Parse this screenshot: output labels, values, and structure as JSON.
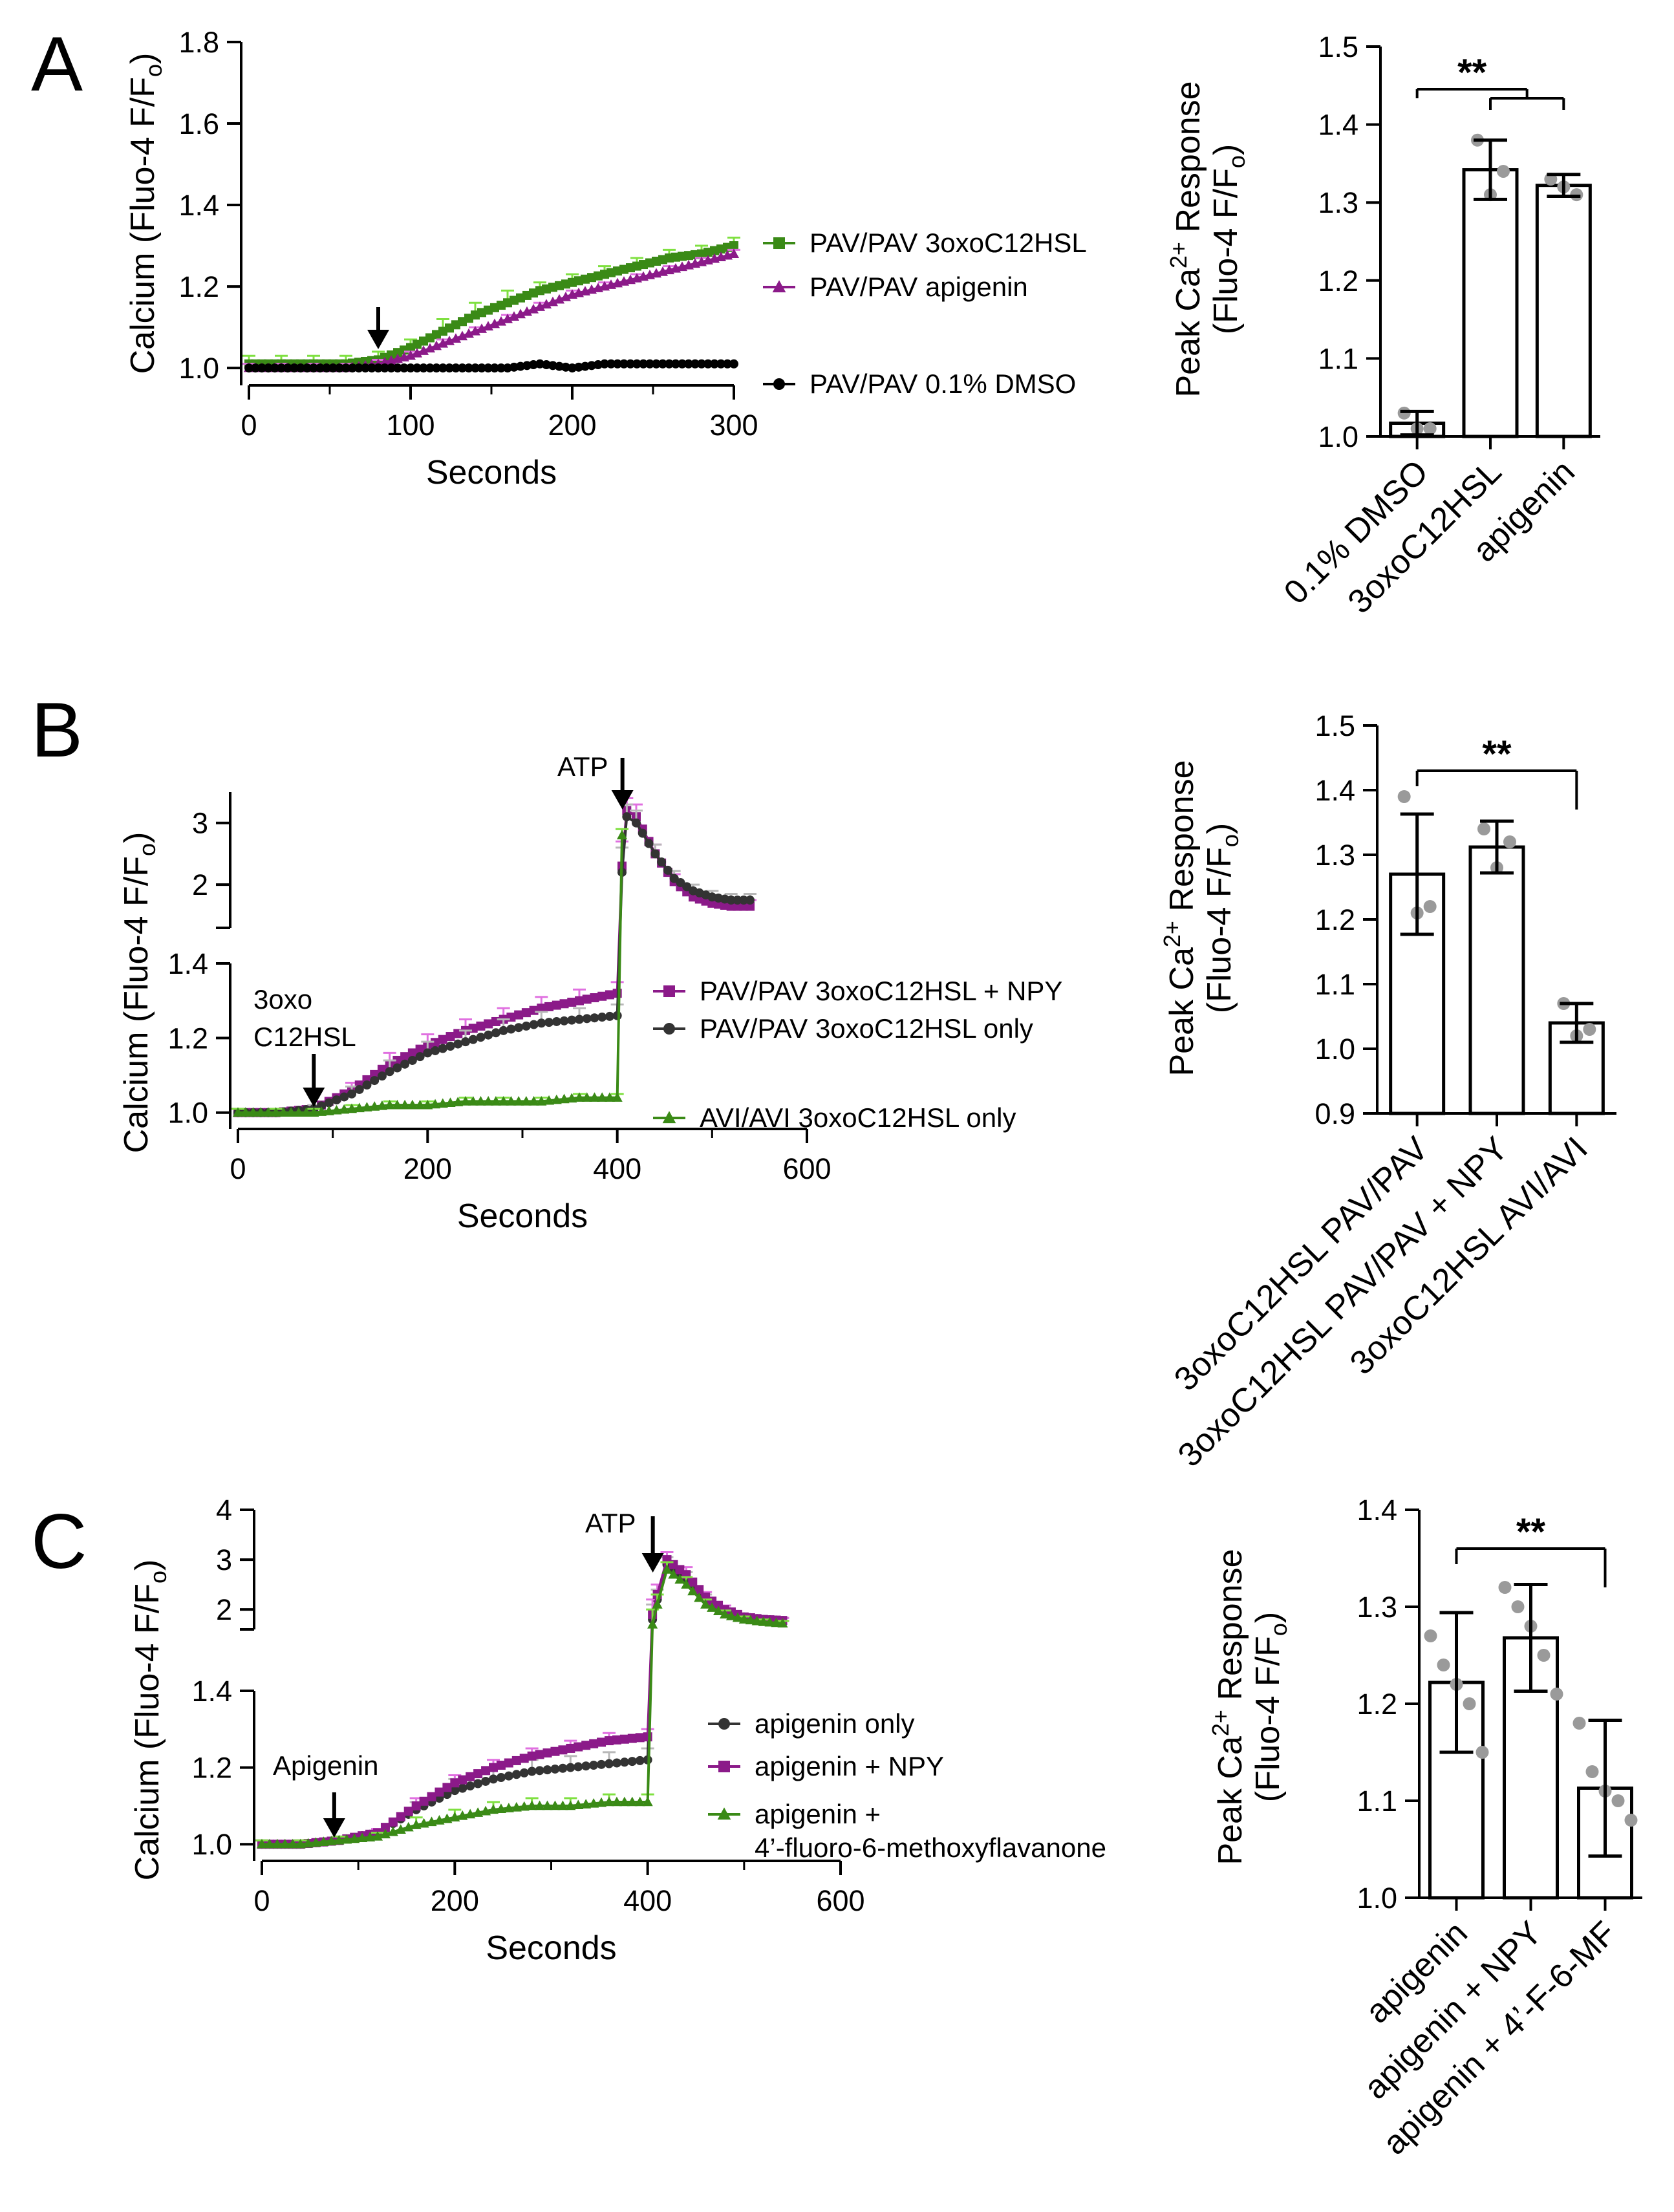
{
  "colors": {
    "black": "#000000",
    "purple": "#8B1A89",
    "green": "#3A8A16",
    "green_light": "#7FE040",
    "purple_light": "#E070E0",
    "grey": "#B8B8B8",
    "dark": "#333333",
    "dot": "#9A9A9A"
  },
  "chart_data": [
    {
      "id": "A_trace",
      "panel_label": "A",
      "type": "line",
      "xlabel": "Seconds",
      "ylabel": "Calcium (Fluo-4 F/F",
      "ylabel_sub": "o",
      "ylabel_close": ")",
      "xlim": [
        0,
        300
      ],
      "ylim": [
        0.97,
        1.8
      ],
      "xticks": [
        0,
        100,
        200,
        300
      ],
      "yticks": [
        1.0,
        1.2,
        1.4,
        1.6,
        1.8
      ],
      "ytick_labels": [
        "1.0",
        "1.2",
        "1.4",
        "1.6",
        "1.8"
      ],
      "arrow_x": 80,
      "series": [
        {
          "name": "PAV/PAV 3oxoC12HSL",
          "color": "green",
          "err_color": "green_light",
          "marker": "square",
          "x": [
            0,
            20,
            40,
            60,
            80,
            100,
            120,
            140,
            160,
            180,
            200,
            220,
            240,
            260,
            280,
            300
          ],
          "y": [
            1.01,
            1.01,
            1.01,
            1.01,
            1.02,
            1.05,
            1.09,
            1.13,
            1.16,
            1.19,
            1.21,
            1.23,
            1.25,
            1.27,
            1.28,
            1.3
          ],
          "err": [
            0.02,
            0.02,
            0.02,
            0.02,
            0.02,
            0.02,
            0.03,
            0.03,
            0.03,
            0.02,
            0.02,
            0.02,
            0.02,
            0.02,
            0.02,
            0.02
          ]
        },
        {
          "name": "PAV/PAV apigenin",
          "color": "purple",
          "err_color": "purple_light",
          "marker": "triangle",
          "x": [
            0,
            20,
            40,
            60,
            80,
            100,
            120,
            140,
            160,
            180,
            200,
            220,
            240,
            260,
            280,
            300
          ],
          "y": [
            1.0,
            1.0,
            1.0,
            1.0,
            1.01,
            1.03,
            1.06,
            1.09,
            1.12,
            1.15,
            1.18,
            1.2,
            1.22,
            1.24,
            1.26,
            1.28
          ],
          "err": [
            0.01,
            0.01,
            0.01,
            0.01,
            0.01,
            0.01,
            0.01,
            0.01,
            0.01,
            0.01,
            0.01,
            0.01,
            0.01,
            0.01,
            0.01,
            0.01
          ]
        },
        {
          "name": "PAV/PAV 0.1% DMSO",
          "color": "black",
          "err_color": "black",
          "marker": "circle",
          "x": [
            0,
            20,
            40,
            60,
            80,
            100,
            120,
            140,
            160,
            180,
            200,
            220,
            240,
            260,
            280,
            300
          ],
          "y": [
            1.0,
            1.0,
            1.0,
            1.0,
            1.0,
            1.0,
            1.0,
            1.0,
            1.0,
            1.01,
            1.0,
            1.01,
            1.01,
            1.01,
            1.01,
            1.01
          ],
          "err": [
            0,
            0,
            0,
            0,
            0,
            0,
            0,
            0,
            0,
            0,
            0,
            0,
            0,
            0,
            0,
            0
          ]
        }
      ]
    },
    {
      "id": "A_bar",
      "type": "bar",
      "ylabel": "Peak Ca",
      "ylabel_sup": "2+",
      "ylabel_rest": " Response",
      "ylabel2": "(Fluo-4 F/F",
      "ylabel2_sub": "o",
      "ylabel2_close": ")",
      "ylim": [
        1.0,
        1.5
      ],
      "yticks": [
        1.0,
        1.1,
        1.2,
        1.3,
        1.4,
        1.5
      ],
      "ytick_labels": [
        "1.0",
        "1.1",
        "1.2",
        "1.3",
        "1.4",
        "1.5"
      ],
      "categories": [
        "0.1% DMSO",
        "3oxoC12HSL",
        "apigenin"
      ],
      "values": [
        1.017,
        1.342,
        1.322
      ],
      "errors": [
        0.015,
        0.038,
        0.014
      ],
      "points": [
        [
          1.03,
          1.01,
          1.01
        ],
        [
          1.38,
          1.31,
          1.34
        ],
        [
          1.33,
          1.32,
          1.31
        ]
      ],
      "significance": "**"
    },
    {
      "id": "B_trace",
      "panel_label": "B",
      "type": "line",
      "xlabel": "Seconds",
      "ylabel": "Calcium (Fluo-4 F/F",
      "ylabel_sub": "o",
      "ylabel_close": ")",
      "xlim": [
        0,
        600
      ],
      "ylim_lower": [
        0.97,
        1.4
      ],
      "ylim_upper": [
        1.3,
        3.5
      ],
      "xticks": [
        0,
        200,
        400,
        600
      ],
      "yticks_lower": [
        1.0,
        1.2,
        1.4
      ],
      "ytick_labels_lower": [
        "1.0",
        "1.2",
        "1.4"
      ],
      "yticks_upper": [
        2,
        3
      ],
      "ytick_labels_upper": [
        "2",
        "3"
      ],
      "annotation_agonist": [
        "3oxo",
        "C12HSL"
      ],
      "arrow_agonist_x": 80,
      "annotation_atp": "ATP",
      "arrow_atp_x": 400,
      "series": [
        {
          "name": "PAV/PAV 3oxoC12HSL + NPY",
          "color": "purple",
          "err_color": "purple_light",
          "marker": "square",
          "x": [
            0,
            40,
            80,
            120,
            160,
            200,
            240,
            280,
            320,
            360,
            400,
            405,
            410,
            420,
            440,
            460,
            480,
            500,
            520,
            540
          ],
          "y": [
            1.0,
            1.0,
            1.01,
            1.06,
            1.13,
            1.18,
            1.22,
            1.25,
            1.28,
            1.3,
            1.32,
            2.3,
            3.2,
            3.1,
            2.5,
            2.05,
            1.8,
            1.7,
            1.65,
            1.65
          ],
          "err": [
            0.01,
            0.01,
            0.01,
            0.02,
            0.03,
            0.03,
            0.03,
            0.03,
            0.03,
            0.03,
            0.03,
            0.4,
            0.2,
            0.2,
            0.15,
            0.12,
            0.1,
            0.1,
            0.1,
            0.1
          ]
        },
        {
          "name": "PAV/PAV 3oxoC12HSL only",
          "color": "dark",
          "err_color": "grey",
          "marker": "circle",
          "x": [
            0,
            40,
            80,
            120,
            160,
            200,
            240,
            280,
            320,
            360,
            400,
            405,
            410,
            420,
            440,
            460,
            480,
            500,
            520,
            540
          ],
          "y": [
            1.0,
            1.0,
            1.01,
            1.05,
            1.11,
            1.16,
            1.19,
            1.22,
            1.24,
            1.25,
            1.26,
            2.2,
            3.1,
            3.0,
            2.5,
            2.1,
            1.9,
            1.8,
            1.75,
            1.75
          ],
          "err": [
            0.01,
            0.01,
            0.01,
            0.02,
            0.03,
            0.03,
            0.03,
            0.03,
            0.03,
            0.03,
            0.03,
            0.4,
            0.2,
            0.2,
            0.15,
            0.12,
            0.1,
            0.1,
            0.1,
            0.1
          ]
        },
        {
          "name": "AVI/AVI 3oxoC12HSL only",
          "color": "green",
          "err_color": "green_light",
          "marker": "triangle",
          "x": [
            0,
            40,
            80,
            120,
            160,
            200,
            240,
            280,
            320,
            360,
            400,
            405
          ],
          "y": [
            1.0,
            1.0,
            1.0,
            1.01,
            1.02,
            1.02,
            1.03,
            1.03,
            1.03,
            1.04,
            1.04,
            2.8
          ],
          "err": [
            0.01,
            0.01,
            0.01,
            0.01,
            0.01,
            0.01,
            0.01,
            0.01,
            0.01,
            0.01,
            0.01,
            0.1
          ]
        }
      ]
    },
    {
      "id": "B_bar",
      "type": "bar",
      "ylabel": "Peak Ca",
      "ylabel_sup": "2+",
      "ylabel_rest": " Response",
      "ylabel2": "(Fluo-4 F/F",
      "ylabel2_sub": "o",
      "ylabel2_close": ")",
      "ylim": [
        0.9,
        1.5
      ],
      "yticks": [
        0.9,
        1.0,
        1.1,
        1.2,
        1.3,
        1.4,
        1.5
      ],
      "ytick_labels": [
        "0.9",
        "1.0",
        "1.1",
        "1.2",
        "1.3",
        "1.4",
        "1.5"
      ],
      "categories": [
        "3oxoC12HSL PAV/PAV",
        "3oxoC12HSL PAV/PAV + NPY",
        "3oxoC12HSL AVI/AVI"
      ],
      "values": [
        1.27,
        1.312,
        1.04
      ],
      "errors": [
        0.093,
        0.04,
        0.03
      ],
      "points": [
        [
          1.39,
          1.21,
          1.22
        ],
        [
          1.34,
          1.28,
          1.32
        ],
        [
          1.07,
          1.02,
          1.03
        ]
      ],
      "significance": "**"
    },
    {
      "id": "C_trace",
      "panel_label": "C",
      "type": "line",
      "xlabel": "Seconds",
      "ylabel": "Calcium (Fluo-4 F/F",
      "ylabel_sub": "o",
      "ylabel_close": ")",
      "xlim": [
        0,
        600
      ],
      "ylim_lower": [
        0.97,
        1.4
      ],
      "ylim_upper": [
        1.6,
        4.0
      ],
      "xticks": [
        0,
        200,
        400,
        600
      ],
      "yticks_lower": [
        1.0,
        1.2,
        1.4
      ],
      "ytick_labels_lower": [
        "1.0",
        "1.2",
        "1.4"
      ],
      "yticks_upper": [
        2,
        3,
        4
      ],
      "ytick_labels_upper": [
        "2",
        "3",
        "4"
      ],
      "annotation_agonist": [
        "Apigenin"
      ],
      "arrow_agonist_x": 75,
      "annotation_atp": "ATP",
      "arrow_atp_x": 400,
      "series": [
        {
          "name": "apigenin only",
          "color": "dark",
          "err_color": "grey",
          "marker": "circle",
          "x": [
            0,
            40,
            80,
            120,
            160,
            200,
            240,
            280,
            320,
            360,
            400,
            405,
            410,
            420,
            440,
            460,
            480,
            500,
            520,
            540
          ],
          "y": [
            1.0,
            1.0,
            1.01,
            1.03,
            1.09,
            1.14,
            1.17,
            1.19,
            1.2,
            1.21,
            1.22,
            1.8,
            2.2,
            2.9,
            2.6,
            2.2,
            1.95,
            1.85,
            1.8,
            1.78
          ],
          "err": [
            0.01,
            0.01,
            0.01,
            0.01,
            0.02,
            0.03,
            0.03,
            0.03,
            0.03,
            0.03,
            0.03,
            0.3,
            0.2,
            0.15,
            0.15,
            0.1,
            0.08,
            0.06,
            0.05,
            0.05
          ]
        },
        {
          "name": "apigenin + NPY",
          "color": "purple",
          "err_color": "purple_light",
          "marker": "square",
          "x": [
            0,
            40,
            80,
            120,
            160,
            200,
            240,
            280,
            320,
            360,
            400,
            405,
            410,
            420,
            440,
            460,
            480,
            500,
            520,
            540
          ],
          "y": [
            1.0,
            1.0,
            1.01,
            1.03,
            1.1,
            1.16,
            1.2,
            1.23,
            1.25,
            1.27,
            1.28,
            1.9,
            2.3,
            3.0,
            2.7,
            2.25,
            2.0,
            1.85,
            1.8,
            1.78
          ],
          "err": [
            0.01,
            0.01,
            0.01,
            0.01,
            0.02,
            0.02,
            0.02,
            0.02,
            0.02,
            0.02,
            0.02,
            0.3,
            0.2,
            0.15,
            0.15,
            0.1,
            0.08,
            0.06,
            0.05,
            0.05
          ]
        },
        {
          "name": "apigenin +",
          "name2": "4’-fluoro-6-methoxyflavanone",
          "color": "green",
          "err_color": "green_light",
          "marker": "triangle",
          "x": [
            0,
            40,
            80,
            120,
            160,
            200,
            240,
            280,
            320,
            360,
            400,
            405,
            410,
            420,
            440,
            460,
            480,
            500,
            520,
            540
          ],
          "y": [
            1.0,
            1.0,
            1.01,
            1.02,
            1.05,
            1.07,
            1.09,
            1.1,
            1.1,
            1.11,
            1.11,
            1.7,
            2.1,
            2.8,
            2.5,
            2.1,
            1.9,
            1.8,
            1.75,
            1.72
          ],
          "err": [
            0.01,
            0.01,
            0.01,
            0.01,
            0.02,
            0.02,
            0.02,
            0.02,
            0.02,
            0.02,
            0.02,
            0.3,
            0.2,
            0.15,
            0.15,
            0.1,
            0.08,
            0.06,
            0.05,
            0.05
          ]
        }
      ]
    },
    {
      "id": "C_bar",
      "type": "bar",
      "ylabel": "Peak Ca",
      "ylabel_sup": "2+",
      "ylabel_rest": " Response",
      "ylabel2": "(Fluo-4 F/F",
      "ylabel2_sub": "o",
      "ylabel2_close": ")",
      "ylim": [
        1.0,
        1.4
      ],
      "yticks": [
        1.0,
        1.1,
        1.2,
        1.3,
        1.4
      ],
      "ytick_labels": [
        "1.0",
        "1.1",
        "1.2",
        "1.3",
        "1.4"
      ],
      "categories": [
        "apigenin",
        "apigenin + NPY",
        "apigenin + 4’-F-6-MF"
      ],
      "values": [
        1.222,
        1.268,
        1.113
      ],
      "errors": [
        0.072,
        0.055,
        0.07
      ],
      "points": [
        [
          1.27,
          1.24,
          1.22,
          1.2,
          1.15
        ],
        [
          1.32,
          1.3,
          1.28,
          1.25,
          1.21
        ],
        [
          1.18,
          1.13,
          1.11,
          1.1,
          1.08
        ]
      ],
      "significance": "**"
    }
  ]
}
